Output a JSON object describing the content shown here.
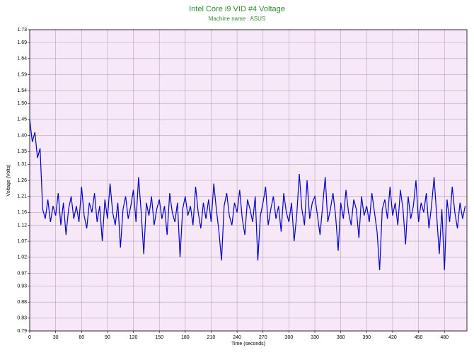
{
  "chart_data": {
    "type": "line",
    "title": "Intel Core i9 VID #4 Voltage",
    "subtitle": "Machine name : ASUS",
    "x_label": "Time (seconds)",
    "y_label": "Voltage (Volts)",
    "xlim": [
      0,
      506
    ],
    "ylim": [
      0.79,
      1.73
    ],
    "xticks": [
      0,
      30,
      60,
      90,
      120,
      150,
      180,
      210,
      240,
      270,
      300,
      330,
      360,
      390,
      420,
      450,
      480
    ],
    "yticks": [
      0.79,
      0.83,
      0.88,
      0.93,
      0.97,
      1.02,
      1.07,
      1.12,
      1.16,
      1.21,
      1.26,
      1.31,
      1.35,
      {
        "value": 1.4,
        "label": "1.40"
      },
      1.45,
      {
        "value": 1.5,
        "label": "1.50"
      },
      1.54,
      1.59,
      1.64,
      1.69,
      1.73
    ],
    "grid": true,
    "background": "#f7e8f8",
    "x": [
      0,
      3,
      6,
      9,
      12,
      15,
      18,
      21,
      24,
      27,
      30,
      33,
      36,
      39,
      42,
      45,
      48,
      51,
      54,
      57,
      60,
      63,
      66,
      69,
      72,
      75,
      78,
      81,
      84,
      87,
      90,
      93,
      96,
      99,
      102,
      105,
      108,
      111,
      114,
      117,
      120,
      123,
      126,
      129,
      132,
      135,
      138,
      141,
      144,
      147,
      150,
      153,
      156,
      159,
      162,
      165,
      168,
      171,
      174,
      177,
      180,
      183,
      186,
      189,
      192,
      195,
      198,
      201,
      204,
      207,
      210,
      213,
      216,
      219,
      222,
      225,
      228,
      231,
      234,
      237,
      240,
      243,
      246,
      249,
      252,
      255,
      258,
      261,
      264,
      267,
      270,
      273,
      276,
      279,
      282,
      285,
      288,
      291,
      294,
      297,
      300,
      303,
      306,
      309,
      312,
      315,
      318,
      321,
      324,
      327,
      330,
      333,
      336,
      339,
      342,
      345,
      348,
      351,
      354,
      357,
      360,
      363,
      366,
      369,
      372,
      375,
      378,
      381,
      384,
      387,
      390,
      393,
      396,
      399,
      402,
      405,
      408,
      411,
      414,
      417,
      420,
      423,
      426,
      429,
      432,
      435,
      438,
      441,
      444,
      447,
      450,
      453,
      456,
      459,
      462,
      465,
      468,
      471,
      474,
      477,
      480,
      483,
      486,
      489,
      492,
      495,
      498,
      501,
      504
    ],
    "series": [
      {
        "color": "#0000cc",
        "values": [
          1.45,
          1.38,
          1.41,
          1.33,
          1.36,
          1.17,
          1.14,
          1.2,
          1.13,
          1.18,
          1.15,
          1.22,
          1.12,
          1.19,
          1.09,
          1.17,
          1.21,
          1.14,
          1.18,
          1.13,
          1.24,
          1.15,
          1.11,
          1.19,
          1.16,
          1.22,
          1.13,
          1.18,
          1.07,
          1.2,
          1.14,
          1.25,
          1.16,
          1.12,
          1.19,
          1.05,
          1.17,
          1.21,
          1.14,
          1.18,
          1.23,
          1.13,
          1.27,
          1.16,
          1.03,
          1.19,
          1.15,
          1.21,
          1.12,
          1.17,
          1.2,
          1.14,
          1.18,
          1.09,
          1.22,
          1.16,
          1.13,
          1.19,
          1.02,
          1.17,
          1.21,
          1.15,
          1.18,
          1.12,
          1.24,
          1.16,
          1.11,
          1.19,
          1.14,
          1.2,
          1.13,
          1.25,
          1.17,
          1.1,
          1.01,
          1.18,
          1.22,
          1.15,
          1.12,
          1.19,
          1.16,
          1.23,
          1.14,
          1.09,
          1.2,
          1.17,
          1.13,
          1.21,
          1.01,
          1.15,
          1.19,
          1.24,
          1.12,
          1.17,
          1.21,
          1.14,
          1.18,
          1.1,
          1.22,
          1.16,
          1.13,
          1.19,
          1.07,
          1.15,
          1.28,
          1.17,
          1.12,
          1.26,
          1.14,
          1.19,
          1.21,
          1.15,
          1.09,
          1.18,
          1.27,
          1.13,
          1.17,
          1.22,
          1.15,
          1.04,
          1.19,
          1.14,
          1.23,
          1.16,
          1.12,
          1.2,
          1.17,
          1.08,
          1.21,
          1.15,
          1.18,
          1.13,
          1.22,
          1.16,
          1.1,
          0.98,
          1.17,
          1.2,
          1.14,
          1.24,
          1.15,
          1.19,
          1.12,
          1.23,
          1.17,
          1.06,
          1.21,
          1.14,
          1.18,
          1.26,
          1.13,
          1.19,
          1.16,
          1.22,
          1.11,
          1.18,
          1.27,
          1.15,
          1.03,
          1.17,
          0.98,
          1.2,
          1.13,
          1.24,
          1.16,
          1.11,
          1.19,
          1.14,
          1.18
        ]
      }
    ]
  }
}
